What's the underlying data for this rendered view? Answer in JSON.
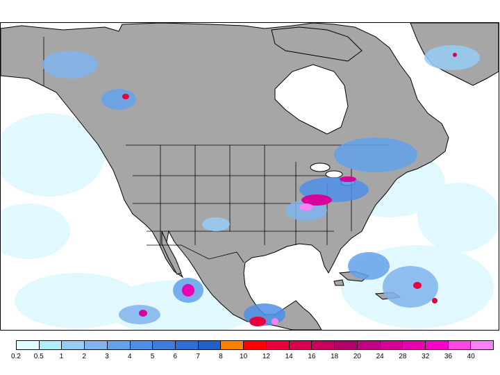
{
  "map": {
    "region": "North America",
    "land_color": "#a6a6a6",
    "ocean_color": "#ffffff",
    "boundary_color": "#000000"
  },
  "legend": {
    "thresholds": [
      "0.2",
      "0.5",
      "1",
      "2",
      "3",
      "4",
      "5",
      "6",
      "7",
      "8",
      "10",
      "12",
      "14",
      "16",
      "18",
      "20",
      "24",
      "28",
      "32",
      "36",
      "40"
    ],
    "colors": [
      "#e0ffff",
      "#aeeef8",
      "#96cdf4",
      "#80b4ee",
      "#64a2ec",
      "#4e90e8",
      "#3c7ee0",
      "#2e6ed8",
      "#2060c8",
      "#ff7f00",
      "#ff0000",
      "#e8003c",
      "#d80052",
      "#c8005e",
      "#b0006e",
      "#c00088",
      "#d8009a",
      "#e800b4",
      "#f800cc",
      "#fc48e4",
      "#ff80f4"
    ]
  }
}
